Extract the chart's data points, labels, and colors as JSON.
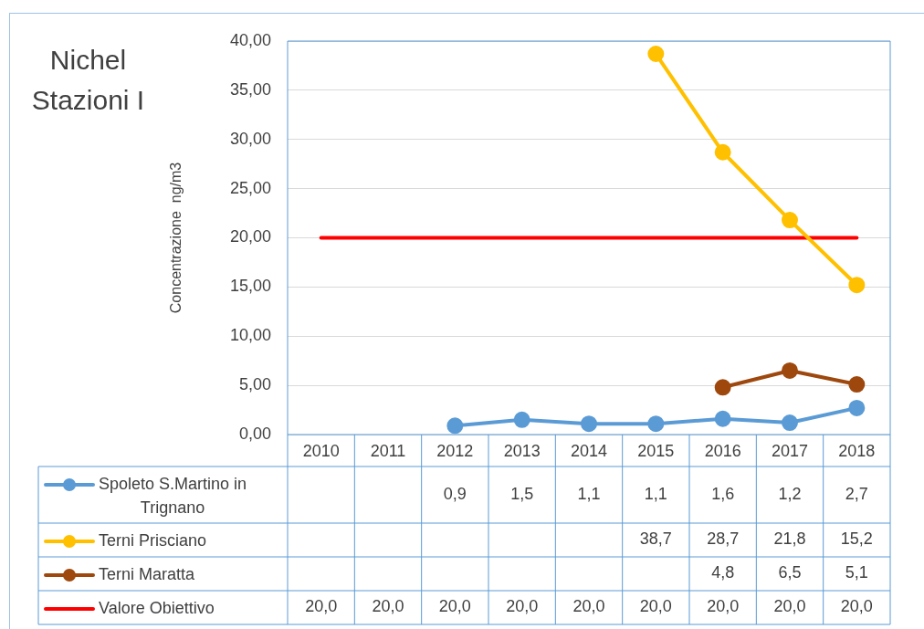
{
  "chart_data": {
    "type": "line",
    "title": "Nichel\nStazioni I",
    "ylabel": "Concentrazione  ng/m3",
    "categories": [
      "2010",
      "2011",
      "2012",
      "2013",
      "2014",
      "2015",
      "2016",
      "2017",
      "2018"
    ],
    "series": [
      {
        "name": "Spoleto S.Martino in Trignano",
        "color": "#5b9bd5",
        "marker": "circle",
        "values": [
          null,
          null,
          0.9,
          1.5,
          1.1,
          1.1,
          1.6,
          1.2,
          2.7
        ],
        "value_labels": [
          null,
          null,
          "0,9",
          "1,5",
          "1,1",
          "1,1",
          "1,6",
          "1,2",
          "2,7"
        ]
      },
      {
        "name": "Terni Prisciano",
        "color": "#ffc000",
        "marker": "circle",
        "values": [
          null,
          null,
          null,
          null,
          null,
          38.7,
          28.7,
          21.8,
          15.2
        ],
        "value_labels": [
          null,
          null,
          null,
          null,
          null,
          "38,7",
          "28,7",
          "21,8",
          "15,2"
        ]
      },
      {
        "name": "Terni Maratta",
        "color": "#9e480e",
        "marker": "circle",
        "values": [
          null,
          null,
          null,
          null,
          null,
          null,
          4.8,
          6.5,
          5.1
        ],
        "value_labels": [
          null,
          null,
          null,
          null,
          null,
          null,
          "4,8",
          "6,5",
          "5,1"
        ]
      },
      {
        "name": "Valore Obiettivo",
        "color": "#ff0000",
        "marker": "none",
        "values": [
          20,
          20,
          20,
          20,
          20,
          20,
          20,
          20,
          20
        ],
        "value_labels": [
          "20,0",
          "20,0",
          "20,0",
          "20,0",
          "20,0",
          "20,0",
          "20,0",
          "20,0",
          "20,0"
        ]
      }
    ],
    "ylim": [
      0,
      40
    ],
    "yticks": [
      {
        "value": 0,
        "label": "0,00"
      },
      {
        "value": 5,
        "label": "5,00"
      },
      {
        "value": 10,
        "label": "10,00"
      },
      {
        "value": 15,
        "label": "15,00"
      },
      {
        "value": 20,
        "label": "20,00"
      },
      {
        "value": 25,
        "label": "25,00"
      },
      {
        "value": 30,
        "label": "30,00"
      },
      {
        "value": 35,
        "label": "35,00"
      },
      {
        "value": 40,
        "label": "40,00"
      }
    ],
    "grid": "y",
    "legend": "bottom"
  }
}
